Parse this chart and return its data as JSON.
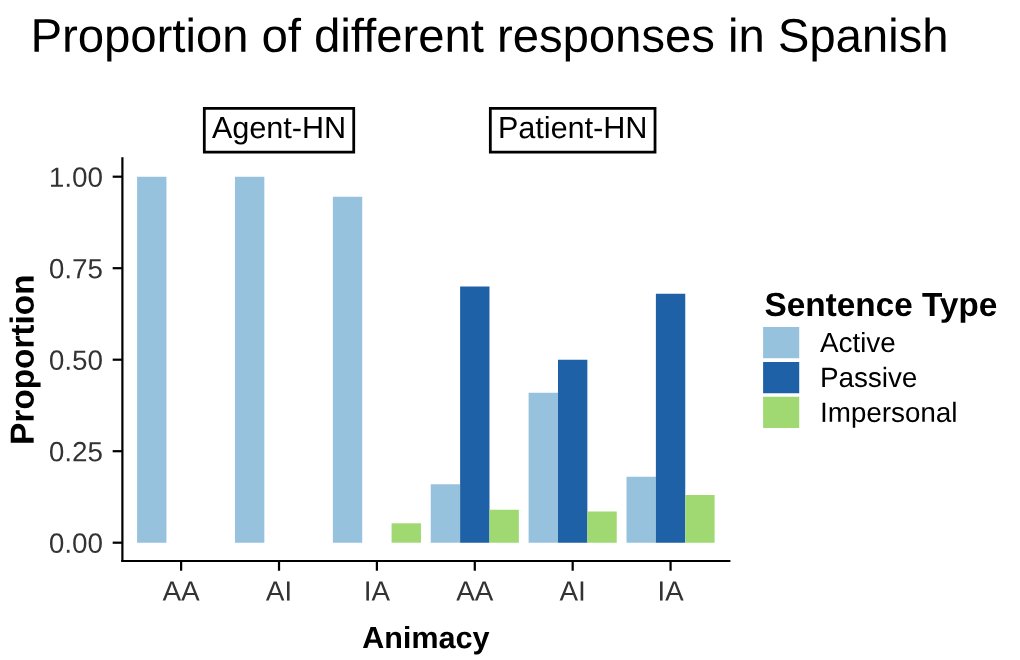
{
  "chart_data": {
    "type": "bar",
    "title": "Proportion of different responses in Spanish",
    "xlabel": "Animacy",
    "ylabel": "Proportion",
    "legend_title": "Sentence Type",
    "legend": "right",
    "annotations": [
      "Agent-HN",
      "Patient-HN"
    ],
    "categories": [
      "AA",
      "AI",
      "IA",
      "AA",
      "AI",
      "IA"
    ],
    "series": [
      {
        "name": "Active",
        "color": "#97c2de",
        "values": [
          1.0,
          1.0,
          0.945,
          0.16,
          0.41,
          0.18
        ]
      },
      {
        "name": "Passive",
        "color": "#1f61a6",
        "values": [
          0,
          0,
          0,
          0.7,
          0.5,
          0.68
        ]
      },
      {
        "name": "Impersonal",
        "color": "#a0d872",
        "values": [
          0,
          0,
          0.053,
          0.09,
          0.085,
          0.13
        ]
      }
    ],
    "ylim": [
      -0.05,
      1.05
    ],
    "yticks": [
      {
        "value": 0,
        "label": "0.00"
      },
      {
        "value": 0.25,
        "label": "0.25"
      },
      {
        "value": 0.5,
        "label": "0.50"
      },
      {
        "value": 0.75,
        "label": "0.75"
      },
      {
        "value": 1.0,
        "label": "1.00"
      }
    ],
    "grid": false
  }
}
